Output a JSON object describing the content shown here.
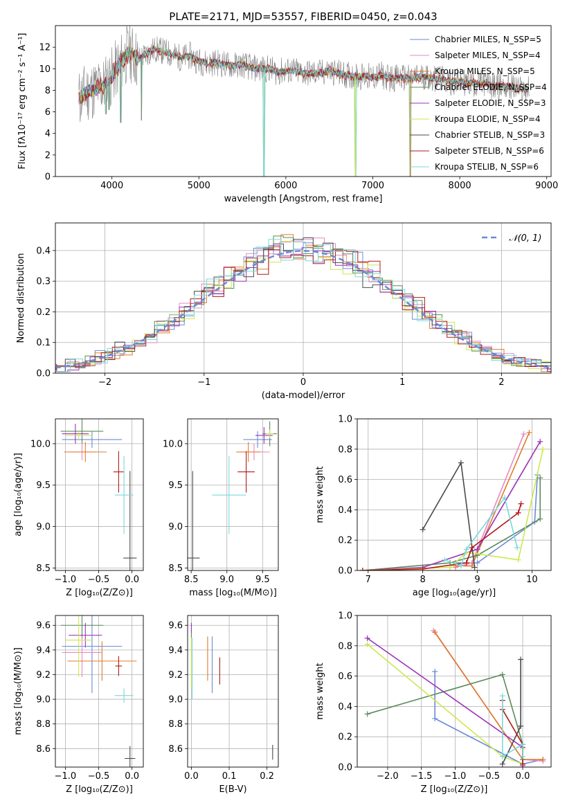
{
  "figure_title": "PLATE=2171, MJD=53557, FIBERID=0450, z=0.043",
  "colors": {
    "chabrier_miles": "#6b8ad6",
    "salpeter_miles": "#e58ac0",
    "kroupa_miles": "#e07b2a",
    "chabrier_elodie": "#5a8a5a",
    "salpeter_elodie": "#9a30b8",
    "kroupa_elodie": "#cce84e",
    "chabrier_stelib": "#4a4a4a",
    "salpeter_stelib": "#b01818",
    "kroupa_stelib": "#7ad8dc",
    "data": "#808080",
    "normal": "#6b8ad6"
  },
  "chart_data": [
    {
      "id": "spectrum",
      "type": "line",
      "xlabel": "wavelength [Angstrom, rest frame]",
      "ylabel": "Flux [fλ10⁻¹⁷ erg cm⁻² s⁻¹ A⁻¹]",
      "xlim": [
        3350,
        9050
      ],
      "ylim": [
        0,
        14
      ],
      "xticks": [
        4000,
        5000,
        6000,
        7000,
        8000,
        9000
      ],
      "yticks": [
        0,
        2,
        4,
        6,
        8,
        10,
        12
      ],
      "legend_position": "right",
      "legend": [
        "Chabrier MILES, N_SSP=5",
        "Salpeter MILES, N_SSP=4",
        "Kroupa MILES, N_SSP=5",
        "Chabrier ELODIE, N_SSP=4",
        "Salpeter ELODIE, N_SSP=3",
        "Kroupa ELODIE, N_SSP=4",
        "Chabrier STELIB, N_SSP=3",
        "Salpeter STELIB, N_SSP=6",
        "Kroupa STELIB, N_SSP=6"
      ],
      "continuum": {
        "x": [
          3620,
          3700,
          3800,
          3900,
          4000,
          4100,
          4200,
          4300,
          4400,
          4500,
          4600,
          4700,
          4800,
          4900,
          5000,
          5100,
          5200,
          5300,
          5400,
          5500,
          5600,
          5700,
          5800,
          5900,
          6000,
          6100,
          6200,
          6300,
          6400,
          6500,
          6600,
          6700,
          6800,
          6900,
          7000,
          7100,
          7200,
          7300,
          7400,
          7500,
          7600,
          7700,
          7800,
          7900,
          8000,
          8100,
          8200,
          8300,
          8400,
          8500,
          8600,
          8700,
          8800
        ],
        "y": [
          7.2,
          7.8,
          8.1,
          8.4,
          9.3,
          10.6,
          11.6,
          10.8,
          11.4,
          11.8,
          11.6,
          11.3,
          11.0,
          11.2,
          10.7,
          10.5,
          10.6,
          10.4,
          10.3,
          10.4,
          10.1,
          10.0,
          10.0,
          9.7,
          9.8,
          9.8,
          9.6,
          9.6,
          9.6,
          9.8,
          9.6,
          9.4,
          9.3,
          9.3,
          9.2,
          9.4,
          9.1,
          9.2,
          9.1,
          9.2,
          9.3,
          9.1,
          9.0,
          8.8,
          8.8,
          8.7,
          8.6,
          8.7,
          8.3,
          8.4,
          8.3,
          8.1,
          8.1
        ]
      },
      "dips": [
        {
          "x": 3934,
          "y": 5.8
        },
        {
          "x": 3969,
          "y": 6.2
        },
        {
          "x": 4102,
          "y": 5.0
        },
        {
          "x": 4340,
          "y": 5.2
        },
        {
          "x": 5750,
          "y": 0
        },
        {
          "x": 6800,
          "y": 0
        },
        {
          "x": 7430,
          "y": 0
        }
      ]
    },
    {
      "id": "residuals",
      "type": "line",
      "xlabel": "(data-model)/error",
      "ylabel": "Normed distribution",
      "xlim": [
        -2.5,
        2.5
      ],
      "ylim": [
        0,
        0.49
      ],
      "xticks": [
        -2,
        -1,
        0,
        1,
        2
      ],
      "yticks": [
        0.0,
        0.1,
        0.2,
        0.3,
        0.4
      ],
      "legend_position": "top-right",
      "legend": [
        "𝒩(0, 1)"
      ],
      "series": [
        {
          "name": "N(0,1)",
          "function": "normal_pdf"
        }
      ]
    },
    {
      "id": "age_vs_Z",
      "type": "scatter",
      "xlabel": "Z [log₁₀(Z/Z⊙)]",
      "ylabel": "age  [log₁₀(age/yr)]",
      "xlim": [
        -1.15,
        0.17
      ],
      "ylim": [
        8.47,
        10.3
      ],
      "xticks": [
        -1.0,
        -0.5,
        0.0
      ],
      "yticks": [
        8.5,
        9.0,
        9.5,
        10.0
      ],
      "points": [
        {
          "x": -0.6,
          "y": 10.05,
          "xerr": 0.45,
          "yerr": 0.1
        },
        {
          "x": -0.75,
          "y": 9.9,
          "yerr": 0.1,
          "xerr": 0.2
        },
        {
          "x": -0.7,
          "y": 9.9,
          "xerr": 0.32,
          "yerr": 0.12
        },
        {
          "x": -0.75,
          "y": 10.15,
          "xerr": 0.32,
          "yerr": 0.15
        },
        {
          "x": -0.85,
          "y": 10.12,
          "xerr": 0.2,
          "yerr": 0.12
        },
        {
          "x": -0.8,
          "y": 10.1,
          "xerr": 0.2,
          "yerr": 0.05
        },
        {
          "x": -0.03,
          "y": 8.62,
          "xerr": 0.1,
          "yerr": 1.05
        },
        {
          "x": -0.2,
          "y": 9.66,
          "xerr": 0.08,
          "yerr": 0.25
        },
        {
          "x": -0.12,
          "y": 9.38,
          "xerr": 0.14,
          "yerr": 0.47
        }
      ]
    },
    {
      "id": "age_vs_mass",
      "type": "scatter",
      "xlabel": "mass [log₁₀(M/M⊙)]",
      "ylabel": "",
      "xlim": [
        8.45,
        9.72
      ],
      "ylim": [
        8.47,
        10.3
      ],
      "xticks": [
        8.5,
        9.0,
        9.5
      ],
      "yticks": [
        8.5,
        9.0,
        9.5,
        10.0
      ],
      "points": [
        {
          "x": 9.43,
          "y": 10.05,
          "xerr": 0.2,
          "yerr": 0.1
        },
        {
          "x": 9.38,
          "y": 9.9,
          "xerr": 0.22,
          "yerr": 0.1
        },
        {
          "x": 9.3,
          "y": 9.9,
          "xerr": 0.17,
          "yerr": 0.12
        },
        {
          "x": 9.6,
          "y": 10.12,
          "xerr": 0.1,
          "yerr": 0.15
        },
        {
          "x": 9.52,
          "y": 10.1,
          "xerr": 0.12,
          "yerr": 0.1
        },
        {
          "x": 9.6,
          "y": 10.12,
          "xerr": 0.05,
          "yerr": 0.05
        },
        {
          "x": 8.52,
          "y": 8.62,
          "xerr": 0.1,
          "yerr": 1.05
        },
        {
          "x": 9.27,
          "y": 9.66,
          "xerr": 0.12,
          "yerr": 0.25
        },
        {
          "x": 9.03,
          "y": 9.38,
          "xerr": 0.24,
          "yerr": 0.47
        }
      ]
    },
    {
      "id": "massweight_vs_age",
      "type": "line",
      "xlabel": "age  [log₁₀(age/yr)]",
      "ylabel": "mass weight",
      "xlim": [
        6.8,
        10.35
      ],
      "ylim": [
        0,
        1
      ],
      "xticks": [
        7,
        8,
        9,
        10
      ],
      "yticks": [
        0.0,
        0.2,
        0.4,
        0.6,
        0.8,
        1.0
      ],
      "series": [
        {
          "x": [
            8.6,
            9.0,
            10.05,
            10.1
          ],
          "y": [
            0.05,
            0.05,
            0.32,
            0.63
          ]
        },
        {
          "x": [
            8.6,
            8.9,
            9.85
          ],
          "y": [
            0.02,
            0.05,
            0.9
          ]
        },
        {
          "x": [
            8.6,
            8.9,
            9.95
          ],
          "y": [
            0.03,
            0.03,
            0.91
          ]
        },
        {
          "x": [
            6.9,
            8.5,
            9.0,
            10.15,
            10.15
          ],
          "y": [
            0.0,
            0.05,
            0.1,
            0.34,
            0.61
          ]
        },
        {
          "x": [
            6.9,
            8.0,
            9.0,
            10.15
          ],
          "y": [
            0.0,
            0.02,
            0.14,
            0.85
          ]
        },
        {
          "x": [
            6.9,
            8.5,
            8.8,
            9.75,
            10.2
          ],
          "y": [
            0.0,
            0.02,
            0.12,
            0.07,
            0.8
          ]
        },
        {
          "x": [
            8.0,
            8.7,
            8.95
          ],
          "y": [
            0.27,
            0.71,
            0.02
          ]
        },
        {
          "x": [
            6.9,
            8.0,
            8.8,
            8.9,
            9.75,
            9.8
          ],
          "y": [
            0.0,
            0.01,
            0.05,
            0.15,
            0.38,
            0.44
          ]
        },
        {
          "x": [
            8.4,
            8.7,
            8.8,
            9.5,
            9.73
          ],
          "y": [
            0.07,
            0.03,
            0.14,
            0.48,
            0.15
          ]
        }
      ]
    },
    {
      "id": "mass_vs_Z",
      "type": "scatter",
      "xlabel": "Z [log₁₀(Z/Z⊙)]",
      "ylabel": "mass [log₁₀(M/M⊙)]",
      "xlim": [
        -1.15,
        0.17
      ],
      "ylim": [
        8.45,
        9.68
      ],
      "xticks": [
        -1.0,
        -0.5,
        0.0
      ],
      "yticks": [
        8.6,
        8.8,
        9.0,
        9.2,
        9.4,
        9.6
      ],
      "points": [
        {
          "x": -0.6,
          "y": 9.43,
          "xerr": 0.45,
          "yerr": 0.38
        },
        {
          "x": -0.75,
          "y": 9.38,
          "xerr": 0.3,
          "yerr": 0.2
        },
        {
          "x": -0.45,
          "y": 9.31,
          "xerr": 0.52,
          "yerr": 0.16
        },
        {
          "x": -0.75,
          "y": 9.6,
          "xerr": 0.32,
          "yerr": 0.1
        },
        {
          "x": -0.7,
          "y": 9.52,
          "xerr": 0.25,
          "yerr": 0.1
        },
        {
          "x": -0.8,
          "y": 9.48,
          "xerr": 0.2,
          "yerr": 0.3
        },
        {
          "x": -0.03,
          "y": 8.52,
          "xerr": 0.08,
          "yerr": 0.1
        },
        {
          "x": -0.2,
          "y": 9.27,
          "xerr": 0.05,
          "yerr": 0.08
        },
        {
          "x": -0.12,
          "y": 9.03,
          "xerr": 0.14,
          "yerr": 0.06
        }
      ]
    },
    {
      "id": "mass_vs_ebv",
      "type": "scatter",
      "xlabel": "E(B-V)",
      "ylabel": "",
      "xlim": [
        -0.01,
        0.23
      ],
      "ylim": [
        8.45,
        9.68
      ],
      "xticks": [
        0.0,
        0.1,
        0.2
      ],
      "yticks": [
        8.6,
        8.8,
        9.0,
        9.2,
        9.4,
        9.6
      ],
      "points": [
        {
          "x": 0.055,
          "y": 9.28,
          "yerr": 0.23
        },
        {
          "x": 0.0,
          "y": 9.45,
          "yerr": 0.08
        },
        {
          "x": 0.043,
          "y": 9.33,
          "yerr": 0.18
        },
        {
          "x": 0.0,
          "y": 9.55,
          "yerr": 0.05
        },
        {
          "x": 0.0,
          "y": 9.58,
          "yerr": 0.04
        },
        {
          "x": 0.0,
          "y": 9.3,
          "yerr": 0.2
        },
        {
          "x": 0.215,
          "y": 8.57,
          "yerr": 0.06
        },
        {
          "x": 0.075,
          "y": 9.23,
          "yerr": 0.11
        },
        {
          "x": 0.002,
          "y": 9.25,
          "yerr": 0.25
        }
      ]
    },
    {
      "id": "massweight_vs_Z",
      "type": "line",
      "xlabel": "Z [log₁₀(Z/Z⊙)]",
      "ylabel": "mass weight",
      "xlim": [
        -2.45,
        0.42
      ],
      "ylim": [
        0,
        1
      ],
      "xticks": [
        -2.0,
        -1.5,
        -1.0,
        -0.5,
        0.0
      ],
      "yticks": [
        0.0,
        0.2,
        0.4,
        0.6,
        0.8,
        1.0
      ],
      "series": [
        {
          "x": [
            -1.3,
            -1.3,
            0.0,
            0.3
          ],
          "y": [
            0.63,
            0.32,
            0.02,
            0.05
          ]
        },
        {
          "x": [
            -1.32,
            0.0,
            0.3
          ],
          "y": [
            0.9,
            0.05,
            0.04
          ]
        },
        {
          "x": [
            -1.3,
            0.0,
            0.3
          ],
          "y": [
            0.89,
            0.05,
            0.05
          ]
        },
        {
          "x": [
            -2.3,
            -0.3,
            0.0,
            0.0
          ],
          "y": [
            0.35,
            0.61,
            0.15,
            0.05
          ]
        },
        {
          "x": [
            -2.3,
            0.0,
            0.0
          ],
          "y": [
            0.85,
            0.13,
            0.01
          ]
        },
        {
          "x": [
            -2.3,
            -0.3,
            0.0,
            0.0
          ],
          "y": [
            0.81,
            0.07,
            0.02,
            0.12
          ]
        },
        {
          "x": [
            -0.03,
            -0.03,
            -0.3
          ],
          "y": [
            0.71,
            0.27,
            0.02
          ]
        },
        {
          "x": [
            -0.3,
            -0.3,
            0.0,
            0.0
          ],
          "y": [
            0.44,
            0.38,
            0.15,
            0.02
          ]
        },
        {
          "x": [
            -0.3,
            -0.3,
            0.0,
            0.0
          ],
          "y": [
            0.47,
            0.07,
            0.15,
            0.07
          ]
        }
      ]
    }
  ]
}
